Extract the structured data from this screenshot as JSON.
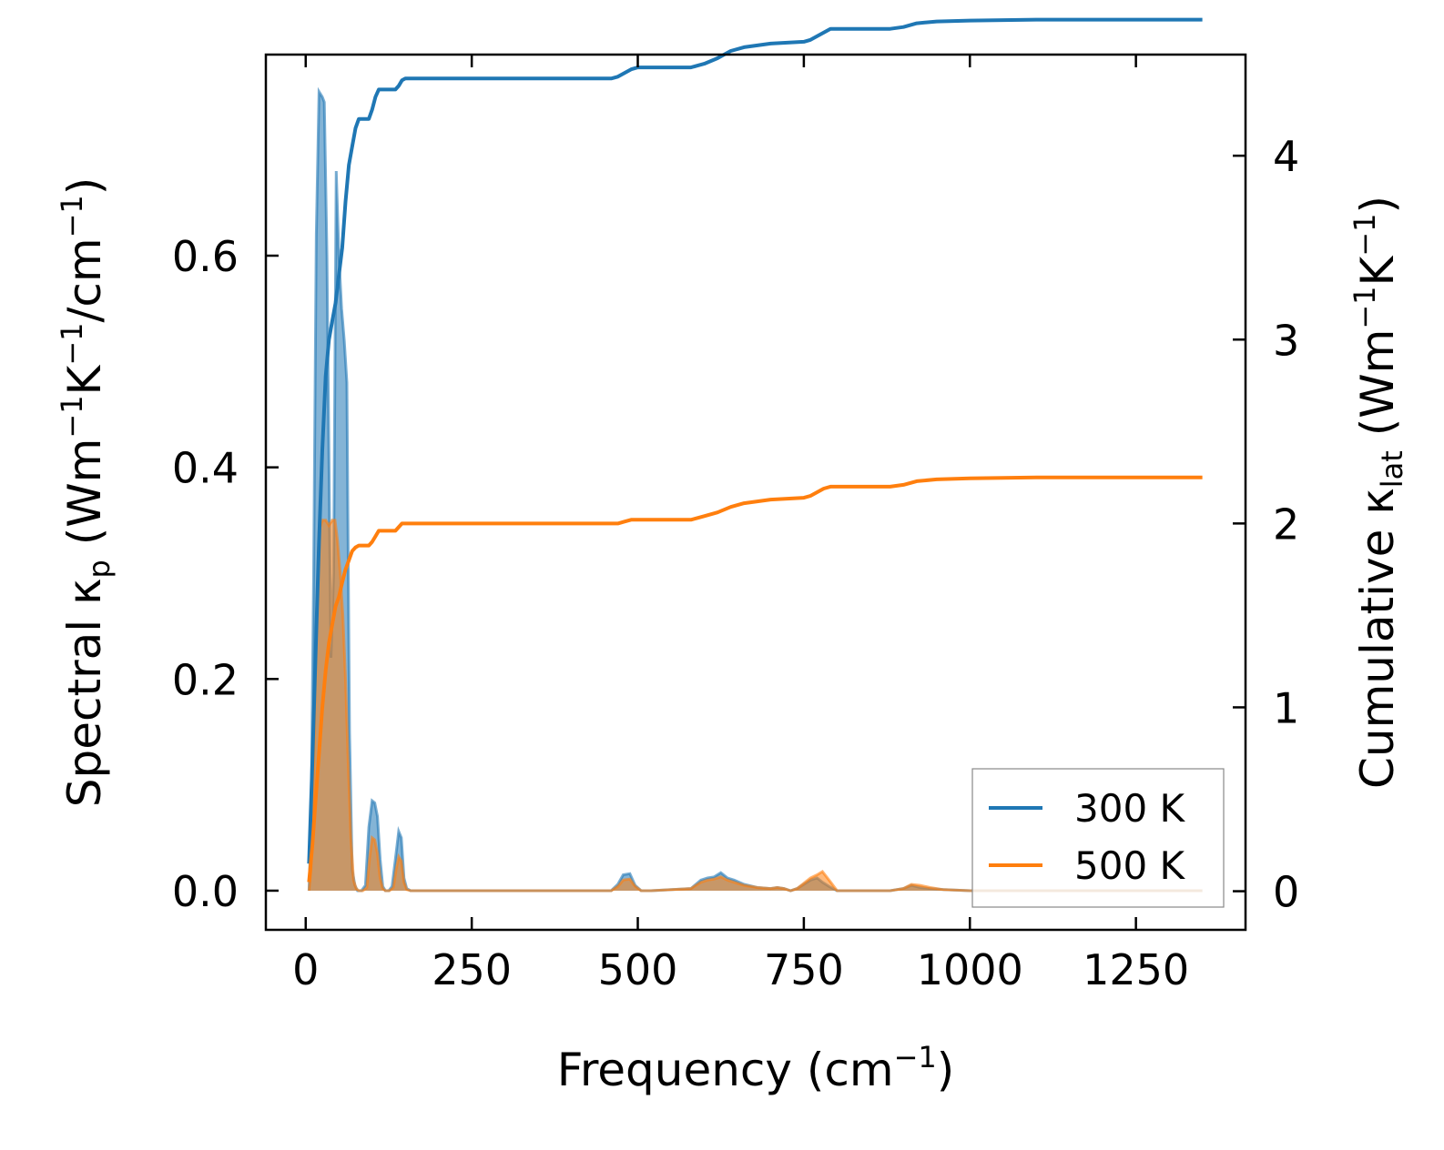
{
  "chart_data": {
    "type": "line",
    "xlabel_main": "Frequency (cm",
    "xlabel_sup": "−1",
    "xlabel_tail": ")",
    "ylabel_left": {
      "prefix": "Spectral κ",
      "sub": "p",
      "mid": " (Wm",
      "sup1": "−1",
      "k": "K",
      "sup2": "−1",
      "tail": "/cm",
      "sup3": "−1",
      "close": ")"
    },
    "ylabel_right": {
      "prefix": "Cumulative κ",
      "sub": "lat",
      "mid": " (Wm",
      "sup1": "−1",
      "k": "K",
      "sup2": "−1",
      "close": ")"
    },
    "xlim": [
      -60,
      1415
    ],
    "ylim_left": [
      -0.037,
      0.79
    ],
    "ylim_right": [
      -0.21,
      4.55
    ],
    "xticks": [
      0,
      250,
      500,
      750,
      1000,
      1250
    ],
    "yticks_left": [
      0.0,
      0.2,
      0.4,
      0.6
    ],
    "yticks_right": [
      0,
      1,
      2,
      3,
      4
    ],
    "colors": {
      "s300": "#1f77b4",
      "s500": "#ff7f0e"
    },
    "legend": {
      "position": "lower right",
      "entries": [
        "300 K",
        "500 K"
      ]
    },
    "spectral": [
      {
        "name": "300 K",
        "x": [
          5,
          8,
          12,
          16,
          20,
          25,
          28,
          32,
          38,
          42,
          46,
          50,
          54,
          58,
          62,
          66,
          70,
          74,
          78,
          84,
          90,
          95,
          100,
          104,
          108,
          112,
          116,
          120,
          125,
          130,
          135,
          140,
          144,
          148,
          152,
          158,
          170,
          300,
          460,
          470,
          478,
          488,
          496,
          505,
          520,
          580,
          595,
          605,
          615,
          625,
          635,
          645,
          660,
          680,
          700,
          710,
          720,
          730,
          740,
          760,
          770,
          778,
          788,
          800,
          820,
          880,
          900,
          912,
          925,
          940,
          960,
          1000,
          1100,
          1200,
          1350
        ],
        "y": [
          0.0,
          0.06,
          0.3,
          0.62,
          0.755,
          0.75,
          0.745,
          0.6,
          0.22,
          0.3,
          0.68,
          0.6,
          0.55,
          0.52,
          0.48,
          0.15,
          0.02,
          0.005,
          0.0,
          0.0,
          0.005,
          0.06,
          0.085,
          0.083,
          0.07,
          0.03,
          0.004,
          0.0,
          0.0,
          0.004,
          0.03,
          0.056,
          0.05,
          0.012,
          0.002,
          0.0,
          0.0,
          0.0,
          0.0,
          0.006,
          0.015,
          0.016,
          0.005,
          0.0,
          0.0,
          0.002,
          0.01,
          0.012,
          0.013,
          0.017,
          0.012,
          0.01,
          0.006,
          0.003,
          0.002,
          0.003,
          0.002,
          0.0,
          0.002,
          0.01,
          0.012,
          0.008,
          0.004,
          0.0,
          0.0,
          0.0,
          0.002,
          0.005,
          0.003,
          0.002,
          0.001,
          0.0,
          0.0,
          0.0,
          0.0
        ]
      },
      {
        "name": "500 K",
        "x": [
          5,
          8,
          12,
          16,
          20,
          25,
          30,
          35,
          40,
          44,
          48,
          52,
          56,
          60,
          64,
          68,
          72,
          76,
          80,
          86,
          92,
          96,
          100,
          104,
          108,
          112,
          116,
          120,
          126,
          132,
          136,
          140,
          144,
          148,
          152,
          158,
          170,
          300,
          460,
          470,
          478,
          488,
          496,
          505,
          520,
          580,
          595,
          605,
          615,
          625,
          635,
          645,
          660,
          680,
          700,
          710,
          720,
          730,
          740,
          760,
          770,
          778,
          788,
          800,
          820,
          880,
          900,
          912,
          925,
          940,
          960,
          1000,
          1100,
          1200,
          1350
        ],
        "y": [
          0.0,
          0.02,
          0.12,
          0.25,
          0.34,
          0.35,
          0.35,
          0.345,
          0.35,
          0.35,
          0.33,
          0.3,
          0.26,
          0.2,
          0.12,
          0.05,
          0.01,
          0.002,
          0.0,
          0.0,
          0.003,
          0.03,
          0.05,
          0.048,
          0.035,
          0.012,
          0.002,
          0.0,
          0.0,
          0.003,
          0.02,
          0.032,
          0.028,
          0.008,
          0.001,
          0.0,
          0.0,
          0.0,
          0.0,
          0.004,
          0.01,
          0.011,
          0.004,
          0.0,
          0.0,
          0.002,
          0.008,
          0.01,
          0.011,
          0.013,
          0.01,
          0.008,
          0.005,
          0.003,
          0.002,
          0.003,
          0.002,
          0.0,
          0.002,
          0.012,
          0.015,
          0.018,
          0.01,
          0.0,
          0.0,
          0.0,
          0.002,
          0.006,
          0.005,
          0.003,
          0.001,
          0.0,
          0.0,
          0.0,
          0.0
        ]
      }
    ],
    "cumulative": [
      {
        "name": "300 K",
        "x": [
          5,
          10,
          15,
          20,
          25,
          30,
          35,
          40,
          45,
          50,
          55,
          60,
          65,
          70,
          75,
          80,
          90,
          95,
          100,
          105,
          110,
          120,
          130,
          135,
          140,
          145,
          150,
          200,
          300,
          400,
          460,
          470,
          480,
          490,
          500,
          520,
          560,
          580,
          590,
          600,
          620,
          640,
          660,
          680,
          700,
          750,
          760,
          770,
          780,
          790,
          800,
          850,
          880,
          900,
          920,
          950,
          1000,
          1100,
          1200,
          1350
        ],
        "y": [
          0.15,
          0.7,
          1.3,
          1.9,
          2.4,
          2.8,
          3.0,
          3.1,
          3.2,
          3.35,
          3.5,
          3.75,
          3.95,
          4.05,
          4.15,
          4.2,
          4.2,
          4.2,
          4.25,
          4.32,
          4.36,
          4.36,
          4.36,
          4.36,
          4.38,
          4.41,
          4.42,
          4.42,
          4.42,
          4.42,
          4.42,
          4.43,
          4.45,
          4.47,
          4.48,
          4.48,
          4.48,
          4.48,
          4.49,
          4.5,
          4.53,
          4.57,
          4.59,
          4.6,
          4.61,
          4.62,
          4.63,
          4.65,
          4.67,
          4.69,
          4.69,
          4.69,
          4.69,
          4.7,
          4.72,
          4.73,
          4.735,
          4.74,
          4.74,
          4.74
        ]
      },
      {
        "name": "500 K",
        "x": [
          5,
          10,
          15,
          20,
          25,
          30,
          35,
          40,
          45,
          50,
          55,
          60,
          65,
          70,
          75,
          80,
          90,
          95,
          100,
          105,
          110,
          120,
          130,
          135,
          140,
          145,
          150,
          200,
          300,
          400,
          460,
          470,
          480,
          490,
          500,
          520,
          560,
          580,
          590,
          600,
          620,
          640,
          660,
          680,
          700,
          750,
          760,
          770,
          780,
          790,
          800,
          850,
          880,
          900,
          920,
          950,
          1000,
          1100,
          1200,
          1350
        ],
        "y": [
          0.05,
          0.25,
          0.5,
          0.75,
          1.0,
          1.2,
          1.35,
          1.45,
          1.55,
          1.6,
          1.68,
          1.75,
          1.8,
          1.85,
          1.87,
          1.88,
          1.88,
          1.88,
          1.9,
          1.93,
          1.96,
          1.96,
          1.96,
          1.96,
          1.98,
          2.0,
          2.0,
          2.0,
          2.0,
          2.0,
          2.0,
          2.0,
          2.01,
          2.02,
          2.02,
          2.02,
          2.02,
          2.02,
          2.03,
          2.04,
          2.06,
          2.09,
          2.11,
          2.12,
          2.13,
          2.14,
          2.15,
          2.17,
          2.19,
          2.2,
          2.2,
          2.2,
          2.2,
          2.21,
          2.23,
          2.24,
          2.245,
          2.25,
          2.25,
          2.25
        ]
      }
    ]
  }
}
